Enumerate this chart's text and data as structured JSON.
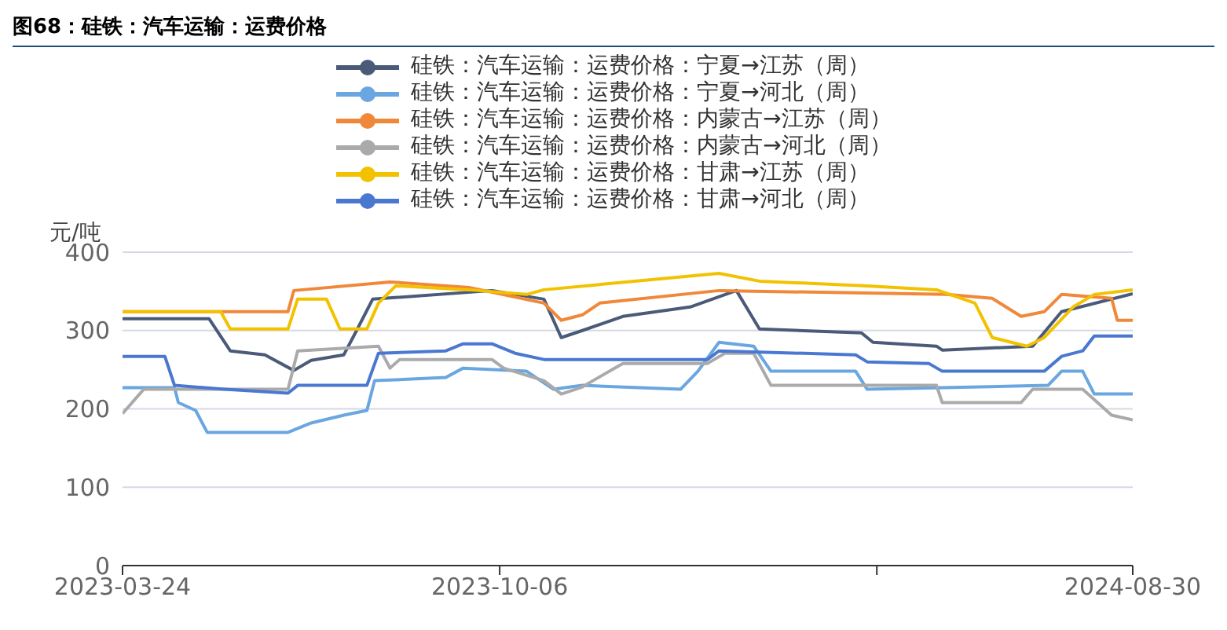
{
  "chart_data": {
    "type": "line",
    "title": "图68：硅铁：汽车运输：运费价格",
    "ylabel": "元/吨",
    "xlim": [
      "2023-03-24",
      "2024-08-30"
    ],
    "xticks": [
      "2023-03-24",
      "2023-10-06",
      {
        "value": "2024-04-19",
        "label": null
      },
      "2024-08-30"
    ],
    "ylim": [
      0,
      400
    ],
    "yticks": [
      0,
      100,
      200,
      300,
      400
    ],
    "grid": "y",
    "legend": "top",
    "marker": "none",
    "line_style": "solid",
    "series": [
      {
        "name": "硅铁：汽车运输：运费价格：宁夏→江苏（周）",
        "color": "#4a5a78",
        "x": [
          "2023-03-24",
          "2023-05-08",
          "2023-05-19",
          "2023-06-06",
          "2023-06-21",
          "2023-06-30",
          "2023-07-17",
          "2023-07-23",
          "2023-08-01",
          "2023-10-02",
          "2023-10-29",
          "2023-11-07",
          "2023-11-18",
          "2023-12-09",
          "2024-01-13",
          "2024-02-06",
          "2024-02-18",
          "2024-04-11",
          "2024-04-17",
          "2024-05-20",
          "2024-05-23",
          "2024-07-09",
          "2024-07-24",
          "2024-08-30"
        ],
        "values": [
          315,
          315,
          274,
          269,
          249,
          262,
          269,
          297,
          340,
          351,
          340,
          291,
          300,
          318,
          330,
          351,
          302,
          297,
          285,
          280,
          275,
          280,
          324,
          347
        ]
      },
      {
        "name": "硅铁：汽车运输：运费价格：宁夏→河北（周）",
        "color": "#6aa6e0",
        "x": [
          "2023-03-24",
          "2023-04-20",
          "2023-04-22",
          "2023-05-01",
          "2023-05-07",
          "2023-06-18",
          "2023-06-30",
          "2023-07-17",
          "2023-07-29",
          "2023-08-02",
          "2023-09-08",
          "2023-09-17",
          "2023-10-20",
          "2023-11-03",
          "2023-11-18",
          "2024-01-08",
          "2024-01-17",
          "2024-01-28",
          "2024-02-15",
          "2024-02-24",
          "2024-04-08",
          "2024-04-14",
          "2024-07-17",
          "2024-07-24",
          "2024-08-04",
          "2024-08-10",
          "2024-08-30"
        ],
        "values": [
          227,
          227,
          208,
          198,
          170,
          170,
          182,
          192,
          198,
          236,
          240,
          252,
          248,
          225,
          230,
          225,
          248,
          285,
          280,
          248,
          248,
          225,
          230,
          248,
          248,
          219,
          219
        ]
      },
      {
        "name": "硅铁：汽车运输：运费价格：内蒙古→江苏（周）",
        "color": "#f0883a",
        "x": [
          "2023-03-24",
          "2023-06-18",
          "2023-06-21",
          "2023-08-10",
          "2023-09-20",
          "2023-10-29",
          "2023-11-07",
          "2023-11-18",
          "2023-11-27",
          "2024-01-28",
          "2024-05-25",
          "2024-06-18",
          "2024-07-03",
          "2024-07-15",
          "2024-07-24",
          "2024-08-19",
          "2024-08-22",
          "2024-08-30"
        ],
        "values": [
          324,
          324,
          351,
          362,
          355,
          335,
          313,
          320,
          335,
          351,
          346,
          341,
          318,
          324,
          346,
          341,
          313,
          313
        ]
      },
      {
        "name": "硅铁：汽车运输：运费价格：内蒙古→河北（周）",
        "color": "#aaaaaa",
        "x": [
          "2023-03-24",
          "2023-04-04",
          "2023-04-20",
          "2023-06-18",
          "2023-06-23",
          "2023-08-04",
          "2023-08-10",
          "2023-08-15",
          "2023-10-02",
          "2023-10-08",
          "2023-10-29",
          "2023-11-07",
          "2023-11-18",
          "2023-11-27",
          "2023-12-09",
          "2024-01-22",
          "2024-01-31",
          "2024-02-15",
          "2024-02-24",
          "2024-05-20",
          "2024-05-23",
          "2024-07-03",
          "2024-07-09",
          "2024-08-04",
          "2024-08-19",
          "2024-08-30"
        ],
        "values": [
          194,
          225,
          225,
          225,
          274,
          280,
          252,
          263,
          263,
          252,
          236,
          219,
          228,
          241,
          258,
          258,
          271,
          271,
          230,
          230,
          208,
          208,
          225,
          225,
          192,
          186
        ]
      },
      {
        "name": "硅铁：汽车运输：运费价格：甘肃→江苏（周）",
        "color": "#f2c200",
        "x": [
          "2023-03-24",
          "2023-05-14",
          "2023-05-19",
          "2023-06-18",
          "2023-06-23",
          "2023-07-08",
          "2023-07-15",
          "2023-07-29",
          "2023-08-04",
          "2023-08-13",
          "2023-09-20",
          "2023-10-20",
          "2023-10-29",
          "2024-01-28",
          "2024-02-18",
          "2024-04-14",
          "2024-05-20",
          "2024-06-09",
          "2024-06-18",
          "2024-07-06",
          "2024-07-15",
          "2024-07-30",
          "2024-08-10",
          "2024-08-30"
        ],
        "values": [
          324,
          324,
          302,
          302,
          340,
          340,
          302,
          302,
          335,
          357,
          352,
          346,
          352,
          373,
          363,
          357,
          352,
          335,
          291,
          280,
          291,
          330,
          346,
          352
        ]
      },
      {
        "name": "硅铁：汽车运输：运费价格：甘肃→河北（周）",
        "color": "#4a78d0",
        "x": [
          "2023-03-24",
          "2023-04-15",
          "2023-04-20",
          "2023-05-16",
          "2023-06-18",
          "2023-06-23",
          "2023-07-29",
          "2023-08-04",
          "2023-09-08",
          "2023-09-17",
          "2023-10-02",
          "2023-10-14",
          "2023-10-29",
          "2024-01-22",
          "2024-01-28",
          "2024-04-08",
          "2024-04-14",
          "2024-05-16",
          "2024-05-23",
          "2024-07-15",
          "2024-07-24",
          "2024-08-04",
          "2024-08-10",
          "2024-08-30"
        ],
        "values": [
          267,
          267,
          230,
          225,
          220,
          230,
          230,
          271,
          274,
          283,
          283,
          271,
          263,
          263,
          274,
          269,
          260,
          258,
          248,
          248,
          267,
          274,
          293,
          293
        ]
      }
    ]
  }
}
